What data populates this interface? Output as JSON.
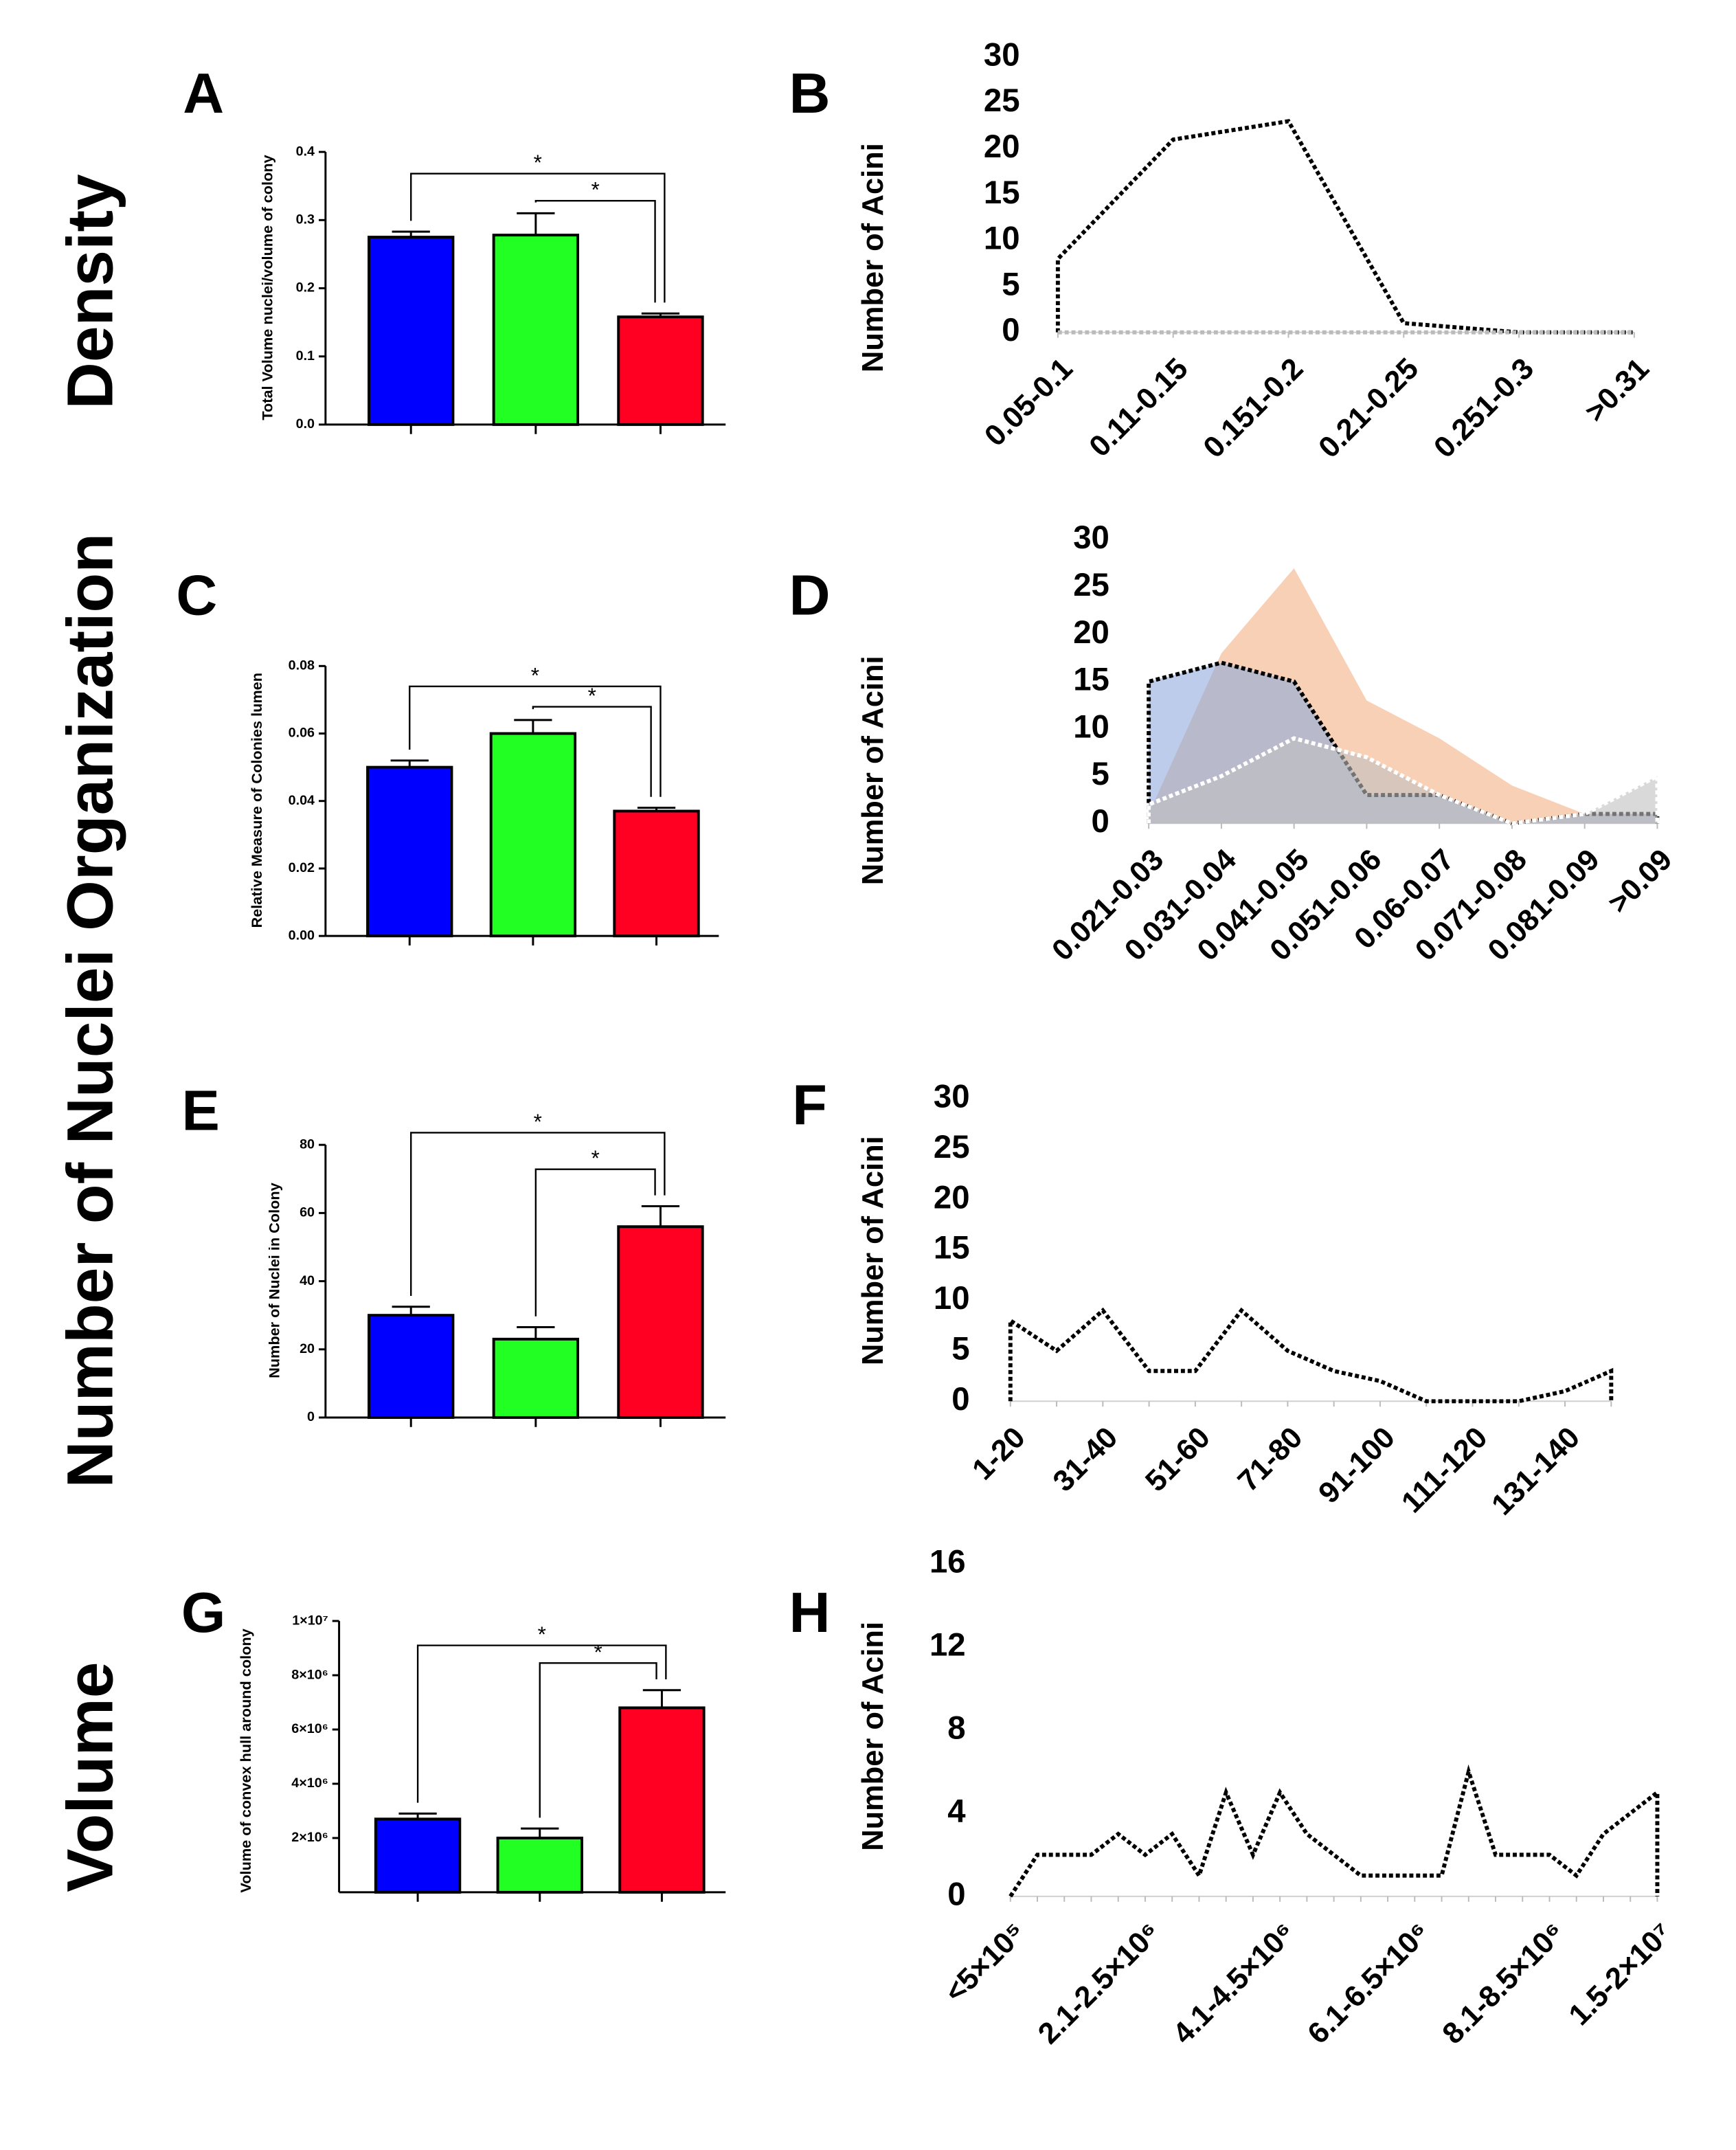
{
  "row_labels": [
    "Density",
    "Number of Nuclei Organization",
    "Volume"
  ],
  "chart_data": [
    {
      "type": "bar",
      "panel": "A",
      "y_label": "Total Volume nuclei/volume of colony",
      "categories": [
        null,
        null,
        null
      ],
      "values": [
        0.275,
        0.278,
        0.158
      ],
      "errors": [
        0.008,
        0.032,
        0.005
      ],
      "colors": [
        "#0000ff",
        "#22ff22",
        "#ff0022"
      ],
      "ylim": [
        0,
        0.4
      ],
      "yticks": [
        {
          "value": 0,
          "label": "0.0"
        },
        0.1,
        0.2,
        0.3,
        0.4
      ],
      "annotations": [
        "*",
        "*"
      ]
    },
    {
      "type": "line",
      "panel": "B",
      "y_label": "Number of Acini",
      "categories": [
        "0.05-0.1",
        "0.11-0.15",
        "0.151-0.2",
        "0.21-0.25",
        "0.251-0.3",
        ">0.31"
      ],
      "series": [
        {
          "color": "#000000",
          "values": [
            8,
            21,
            23,
            1,
            0,
            0
          ]
        },
        {
          "color": "#bbbbbb",
          "values": [
            0,
            0,
            0,
            0,
            0,
            0
          ]
        }
      ],
      "ylim": [
        0,
        30
      ],
      "yticks": [
        0,
        5,
        10,
        15,
        20,
        25,
        30
      ]
    },
    {
      "type": "bar",
      "panel": "C",
      "y_label": "Relative Measure of Colonies lumen",
      "categories": [
        null,
        null,
        null
      ],
      "values": [
        0.05,
        0.06,
        0.037
      ],
      "errors": [
        0.002,
        0.004,
        0.001
      ],
      "colors": [
        "#0000ff",
        "#22ff22",
        "#ff0022"
      ],
      "ylim": [
        0,
        0.08
      ],
      "yticks": [
        {
          "value": 0,
          "label": "0.00"
        },
        {
          "value": 0.02,
          "label": "0.02"
        },
        {
          "value": 0.04,
          "label": "0.04"
        },
        {
          "value": 0.06,
          "label": "0.06"
        },
        {
          "value": 0.08,
          "label": "0.08"
        }
      ],
      "annotations": [
        "*",
        "*"
      ]
    },
    {
      "type": "line",
      "panel": "D",
      "y_label": "Number of Acini",
      "categories": [
        "0.021-0.03",
        "0.031-0.04",
        "0.041-0.05",
        "0.051-0.06",
        "0.06-0.07",
        "0.071-0.08",
        "0.081-0.09",
        ">0.09"
      ],
      "series": [
        {
          "fill": "#f4b183",
          "values": [
            1,
            18,
            27,
            13,
            9,
            4,
            1,
            1
          ]
        },
        {
          "fill": "#8faadc",
          "color": "#000000",
          "values": [
            15,
            17,
            15,
            3,
            3,
            0,
            1,
            1
          ]
        },
        {
          "fill": "#bfbfbf",
          "color": "#ffffff",
          "values": [
            2,
            5,
            9,
            7,
            3,
            0,
            1,
            5
          ]
        }
      ],
      "ylim": [
        0,
        30
      ],
      "yticks": [
        0,
        5,
        10,
        15,
        20,
        25,
        30
      ]
    },
    {
      "type": "bar",
      "panel": "E",
      "y_label": "Number of Nuclei in Colony",
      "categories": [
        null,
        null,
        null
      ],
      "values": [
        30,
        23,
        56
      ],
      "errors": [
        2.5,
        3.5,
        6
      ],
      "colors": [
        "#0000ff",
        "#22ff22",
        "#ff0022"
      ],
      "ylim": [
        0,
        80
      ],
      "yticks": [
        0,
        20,
        40,
        60,
        80
      ],
      "annotations": [
        "*",
        "*"
      ]
    },
    {
      "type": "line",
      "panel": "F",
      "y_label": "Number of Acini",
      "categories": [
        "1-20",
        null,
        "31-40",
        null,
        "51-60",
        null,
        "71-80",
        null,
        "91-100",
        null,
        "111-120",
        null,
        "131-140",
        null
      ],
      "series": [
        {
          "color": "#000000",
          "values": [
            8,
            5,
            9,
            3,
            3,
            9,
            5,
            3,
            2,
            0,
            0,
            0,
            1,
            3
          ]
        }
      ],
      "ylim": [
        0,
        30
      ],
      "yticks": [
        0,
        5,
        10,
        15,
        20,
        25,
        30
      ]
    },
    {
      "type": "bar",
      "panel": "G",
      "y_label": "Volume of convex hull around colony",
      "categories": [
        null,
        null,
        null
      ],
      "values": [
        2700000,
        2000000,
        6800000
      ],
      "errors": [
        200000,
        350000,
        650000
      ],
      "colors": [
        "#0000ff",
        "#22ff22",
        "#ff0022"
      ],
      "ylim": [
        0,
        10000000
      ],
      "yticks": [
        {
          "value": 2000000,
          "label": "2×10⁶"
        },
        {
          "value": 4000000,
          "label": "4×10⁶"
        },
        {
          "value": 6000000,
          "label": "6×10⁶"
        },
        {
          "value": 8000000,
          "label": "8×10⁶"
        },
        {
          "value": 10000000,
          "label": "1×10⁷"
        }
      ],
      "annotations": [
        "*",
        "*"
      ]
    },
    {
      "type": "line",
      "panel": "H",
      "y_label": "Number of Acini",
      "categories": [
        "<5×10⁵",
        null,
        null,
        null,
        null,
        "2.1-2.5×10⁶",
        null,
        null,
        null,
        null,
        "4.1-4.5×10⁶",
        null,
        null,
        null,
        null,
        "6.1-6.5×10⁶",
        null,
        null,
        null,
        null,
        "8.1-8.5×10⁶",
        null,
        null,
        null,
        "1.5-2×10⁷"
      ],
      "series": [
        {
          "color": "#000000",
          "values": [
            0,
            2,
            2,
            2,
            3,
            2,
            3,
            1,
            5,
            2,
            5,
            3,
            2,
            1,
            1,
            1,
            1,
            6,
            2,
            2,
            2,
            1,
            3,
            4,
            5
          ]
        }
      ],
      "ylim": [
        0,
        16
      ],
      "yticks": [
        0,
        4,
        8,
        12,
        16
      ]
    }
  ]
}
